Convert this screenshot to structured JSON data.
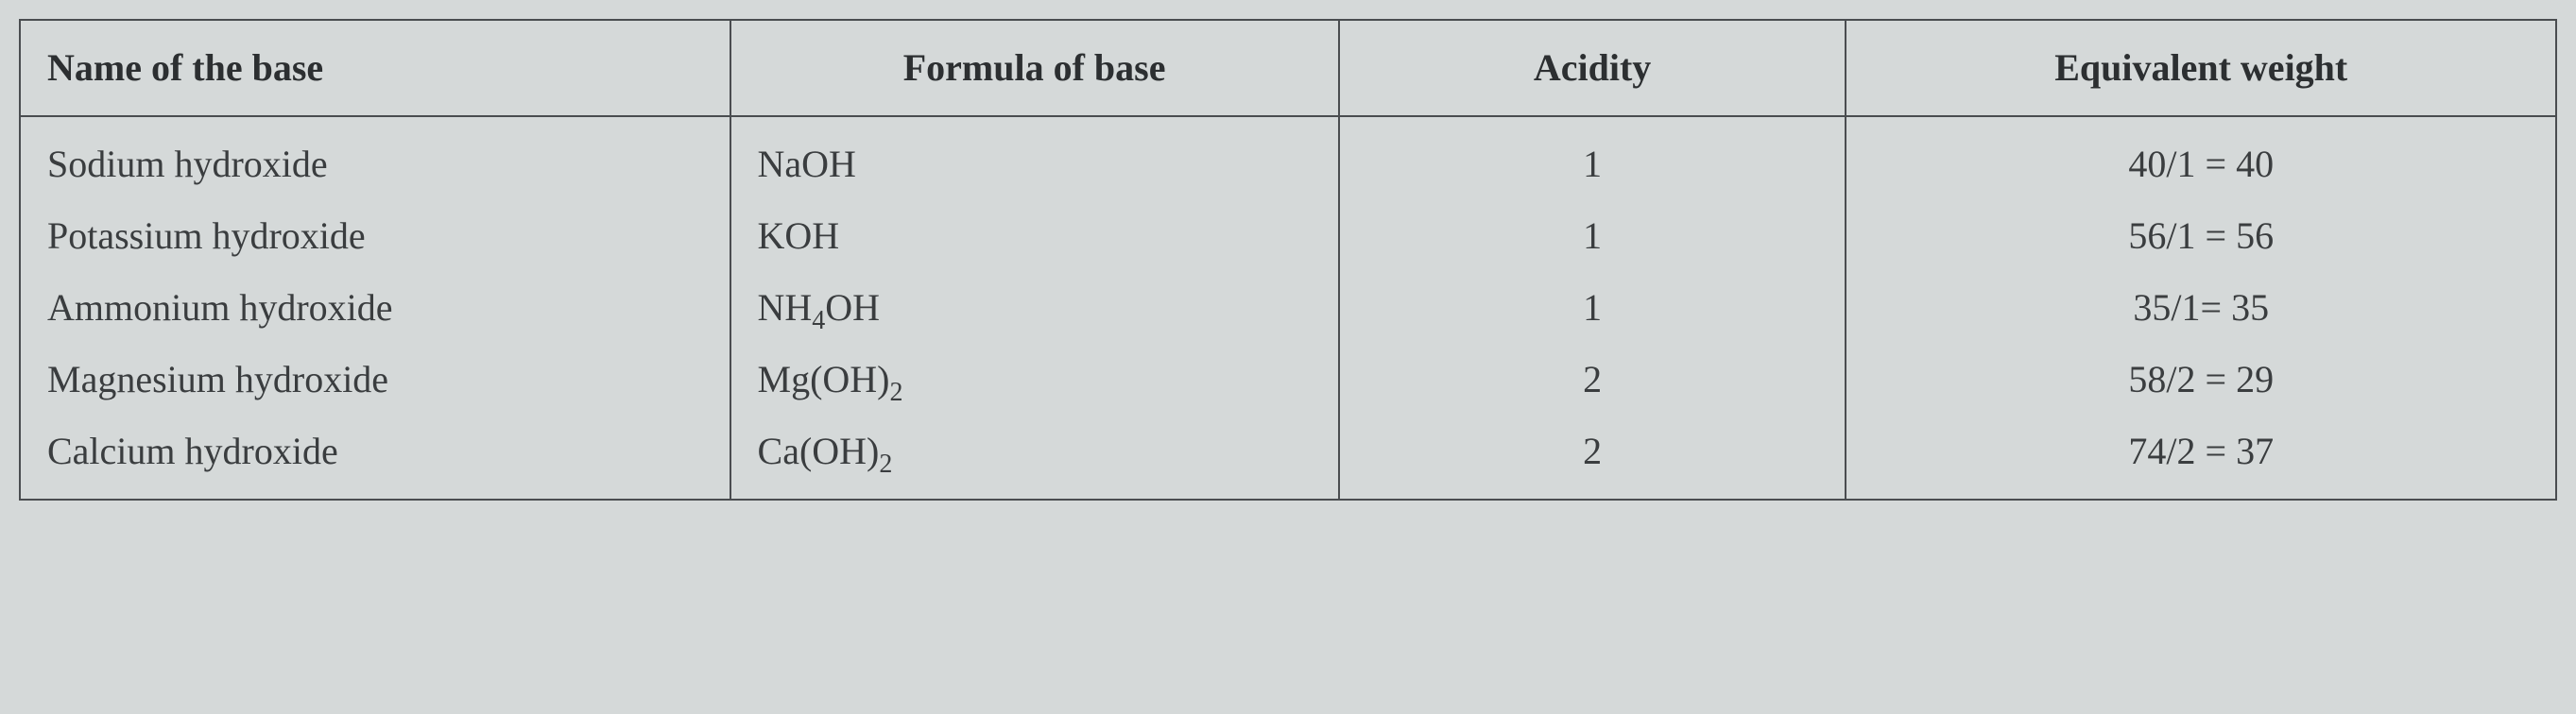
{
  "table": {
    "background_color": "#d5d9d9",
    "border_color": "#4a4d50",
    "text_color": "#3a3d3f",
    "header_text_color": "#2c2f31",
    "font_family": "Times New Roman",
    "header_fontsize_pt": 30,
    "cell_fontsize_pt": 30,
    "columns": [
      {
        "label": "Name of the base",
        "align": "left",
        "width_pct": 28
      },
      {
        "label": "Formula of base",
        "align": "center",
        "width_pct": 24
      },
      {
        "label": "Acidity",
        "align": "center",
        "width_pct": 20
      },
      {
        "label": "Equivalent weight",
        "align": "center",
        "width_pct": 28
      }
    ],
    "rows": [
      {
        "name": "Sodium hydroxide",
        "formula_html": "NaOH",
        "acidity": "1",
        "eq_weight": "40/1 = 40"
      },
      {
        "name": "Potassium hydroxide",
        "formula_html": "KOH",
        "acidity": "1",
        "eq_weight": "56/1 = 56"
      },
      {
        "name": "Ammonium hydroxide",
        "formula_html": "NH<sub>4</sub>OH",
        "acidity": "1",
        "eq_weight": "35/1= 35"
      },
      {
        "name": "Magnesium hydroxide",
        "formula_html": "Mg(OH)<sub>2</sub>",
        "acidity": "2",
        "eq_weight": "58/2 = 29"
      },
      {
        "name": "Calcium hydroxide",
        "formula_html": "Ca(OH)<sub>2</sub>",
        "acidity": "2",
        "eq_weight": "74/2 = 37"
      }
    ]
  }
}
